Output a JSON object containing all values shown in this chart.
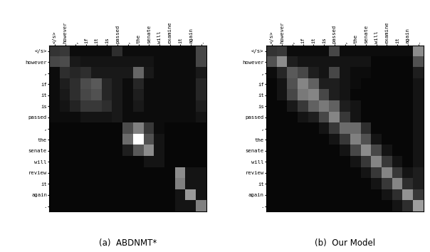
{
  "x_labels": [
    "</s>",
    "however",
    ",",
    "if",
    "it",
    "is",
    "passed",
    ",",
    "the",
    "senate",
    "will",
    "examine",
    "it",
    "again",
    "."
  ],
  "y_labels": [
    "</s>",
    "however",
    ",",
    "if",
    "it",
    "is",
    "passed",
    ",",
    "the",
    "senate",
    "will",
    "review",
    "it",
    "again",
    "."
  ],
  "matrix_a": [
    [
      0.2,
      0.22,
      0.05,
      0.05,
      0.05,
      0.05,
      0.18,
      0.05,
      0.05,
      0.05,
      0.05,
      0.05,
      0.05,
      0.05,
      0.28
    ],
    [
      0.28,
      0.3,
      0.1,
      0.08,
      0.08,
      0.08,
      0.08,
      0.08,
      0.08,
      0.08,
      0.05,
      0.05,
      0.05,
      0.05,
      0.28
    ],
    [
      0.05,
      0.18,
      0.15,
      0.18,
      0.1,
      0.1,
      0.1,
      0.1,
      0.4,
      0.1,
      0.05,
      0.05,
      0.05,
      0.05,
      0.1
    ],
    [
      0.05,
      0.12,
      0.18,
      0.3,
      0.35,
      0.15,
      0.1,
      0.05,
      0.15,
      0.05,
      0.05,
      0.05,
      0.05,
      0.05,
      0.15
    ],
    [
      0.05,
      0.1,
      0.18,
      0.28,
      0.32,
      0.15,
      0.1,
      0.05,
      0.12,
      0.05,
      0.05,
      0.05,
      0.05,
      0.05,
      0.15
    ],
    [
      0.05,
      0.08,
      0.14,
      0.22,
      0.22,
      0.18,
      0.1,
      0.05,
      0.1,
      0.05,
      0.05,
      0.05,
      0.05,
      0.05,
      0.12
    ],
    [
      0.05,
      0.05,
      0.05,
      0.08,
      0.08,
      0.08,
      0.1,
      0.05,
      0.05,
      0.05,
      0.05,
      0.05,
      0.05,
      0.05,
      0.08
    ],
    [
      0.03,
      0.03,
      0.03,
      0.03,
      0.03,
      0.03,
      0.03,
      0.3,
      0.5,
      0.22,
      0.05,
      0.03,
      0.03,
      0.03,
      0.03
    ],
    [
      0.03,
      0.03,
      0.03,
      0.03,
      0.03,
      0.03,
      0.03,
      0.42,
      1.0,
      0.32,
      0.08,
      0.03,
      0.03,
      0.03,
      0.03
    ],
    [
      0.03,
      0.03,
      0.03,
      0.03,
      0.03,
      0.03,
      0.03,
      0.12,
      0.35,
      0.55,
      0.08,
      0.03,
      0.03,
      0.03,
      0.03
    ],
    [
      0.03,
      0.03,
      0.03,
      0.03,
      0.03,
      0.03,
      0.03,
      0.03,
      0.03,
      0.08,
      0.08,
      0.03,
      0.03,
      0.03,
      0.03
    ],
    [
      0.03,
      0.03,
      0.03,
      0.03,
      0.03,
      0.03,
      0.03,
      0.03,
      0.03,
      0.03,
      0.03,
      0.03,
      0.55,
      0.08,
      0.08
    ],
    [
      0.03,
      0.03,
      0.03,
      0.03,
      0.03,
      0.03,
      0.03,
      0.03,
      0.03,
      0.03,
      0.03,
      0.03,
      0.5,
      0.08,
      0.08
    ],
    [
      0.03,
      0.03,
      0.03,
      0.03,
      0.03,
      0.03,
      0.03,
      0.03,
      0.03,
      0.03,
      0.03,
      0.03,
      0.08,
      0.6,
      0.08
    ],
    [
      0.03,
      0.03,
      0.03,
      0.03,
      0.03,
      0.03,
      0.03,
      0.03,
      0.03,
      0.03,
      0.03,
      0.03,
      0.08,
      0.08,
      0.5
    ]
  ],
  "matrix_b": [
    [
      0.2,
      0.22,
      0.05,
      0.05,
      0.05,
      0.05,
      0.28,
      0.05,
      0.05,
      0.05,
      0.05,
      0.05,
      0.05,
      0.05,
      0.55
    ],
    [
      0.32,
      0.55,
      0.12,
      0.08,
      0.08,
      0.08,
      0.08,
      0.08,
      0.08,
      0.08,
      0.03,
      0.03,
      0.03,
      0.03,
      0.32
    ],
    [
      0.05,
      0.15,
      0.35,
      0.28,
      0.12,
      0.08,
      0.28,
      0.08,
      0.05,
      0.05,
      0.03,
      0.03,
      0.03,
      0.03,
      0.12
    ],
    [
      0.03,
      0.08,
      0.32,
      0.52,
      0.38,
      0.12,
      0.12,
      0.08,
      0.05,
      0.03,
      0.03,
      0.03,
      0.03,
      0.03,
      0.08
    ],
    [
      0.03,
      0.08,
      0.28,
      0.48,
      0.52,
      0.28,
      0.12,
      0.08,
      0.03,
      0.03,
      0.03,
      0.03,
      0.03,
      0.03,
      0.08
    ],
    [
      0.03,
      0.03,
      0.1,
      0.22,
      0.38,
      0.48,
      0.38,
      0.12,
      0.08,
      0.03,
      0.03,
      0.03,
      0.03,
      0.03,
      0.08
    ],
    [
      0.03,
      0.03,
      0.03,
      0.08,
      0.12,
      0.28,
      0.52,
      0.22,
      0.08,
      0.03,
      0.03,
      0.03,
      0.03,
      0.03,
      0.08
    ],
    [
      0.03,
      0.03,
      0.03,
      0.03,
      0.03,
      0.08,
      0.22,
      0.42,
      0.42,
      0.18,
      0.03,
      0.03,
      0.03,
      0.03,
      0.08
    ],
    [
      0.03,
      0.03,
      0.03,
      0.03,
      0.03,
      0.03,
      0.08,
      0.22,
      0.5,
      0.32,
      0.08,
      0.03,
      0.03,
      0.03,
      0.08
    ],
    [
      0.03,
      0.03,
      0.03,
      0.03,
      0.03,
      0.03,
      0.03,
      0.08,
      0.28,
      0.55,
      0.28,
      0.08,
      0.03,
      0.03,
      0.08
    ],
    [
      0.03,
      0.03,
      0.03,
      0.03,
      0.03,
      0.03,
      0.03,
      0.03,
      0.08,
      0.22,
      0.52,
      0.22,
      0.08,
      0.03,
      0.08
    ],
    [
      0.03,
      0.03,
      0.03,
      0.03,
      0.03,
      0.03,
      0.03,
      0.03,
      0.03,
      0.08,
      0.22,
      0.52,
      0.22,
      0.08,
      0.12
    ],
    [
      0.03,
      0.03,
      0.03,
      0.03,
      0.03,
      0.03,
      0.03,
      0.03,
      0.03,
      0.03,
      0.08,
      0.22,
      0.52,
      0.18,
      0.12
    ],
    [
      0.03,
      0.03,
      0.03,
      0.03,
      0.03,
      0.03,
      0.03,
      0.03,
      0.03,
      0.03,
      0.03,
      0.08,
      0.18,
      0.58,
      0.22
    ],
    [
      0.03,
      0.03,
      0.03,
      0.03,
      0.03,
      0.03,
      0.03,
      0.03,
      0.03,
      0.03,
      0.03,
      0.03,
      0.08,
      0.18,
      0.62
    ]
  ],
  "title_a": "(a)  ABDNMT*",
  "title_b": "(b)  Our Model",
  "cmap": "gray",
  "fig_width": 6.04,
  "fig_height": 3.54,
  "label_fontsize": 5.2,
  "title_fontsize": 8.5
}
